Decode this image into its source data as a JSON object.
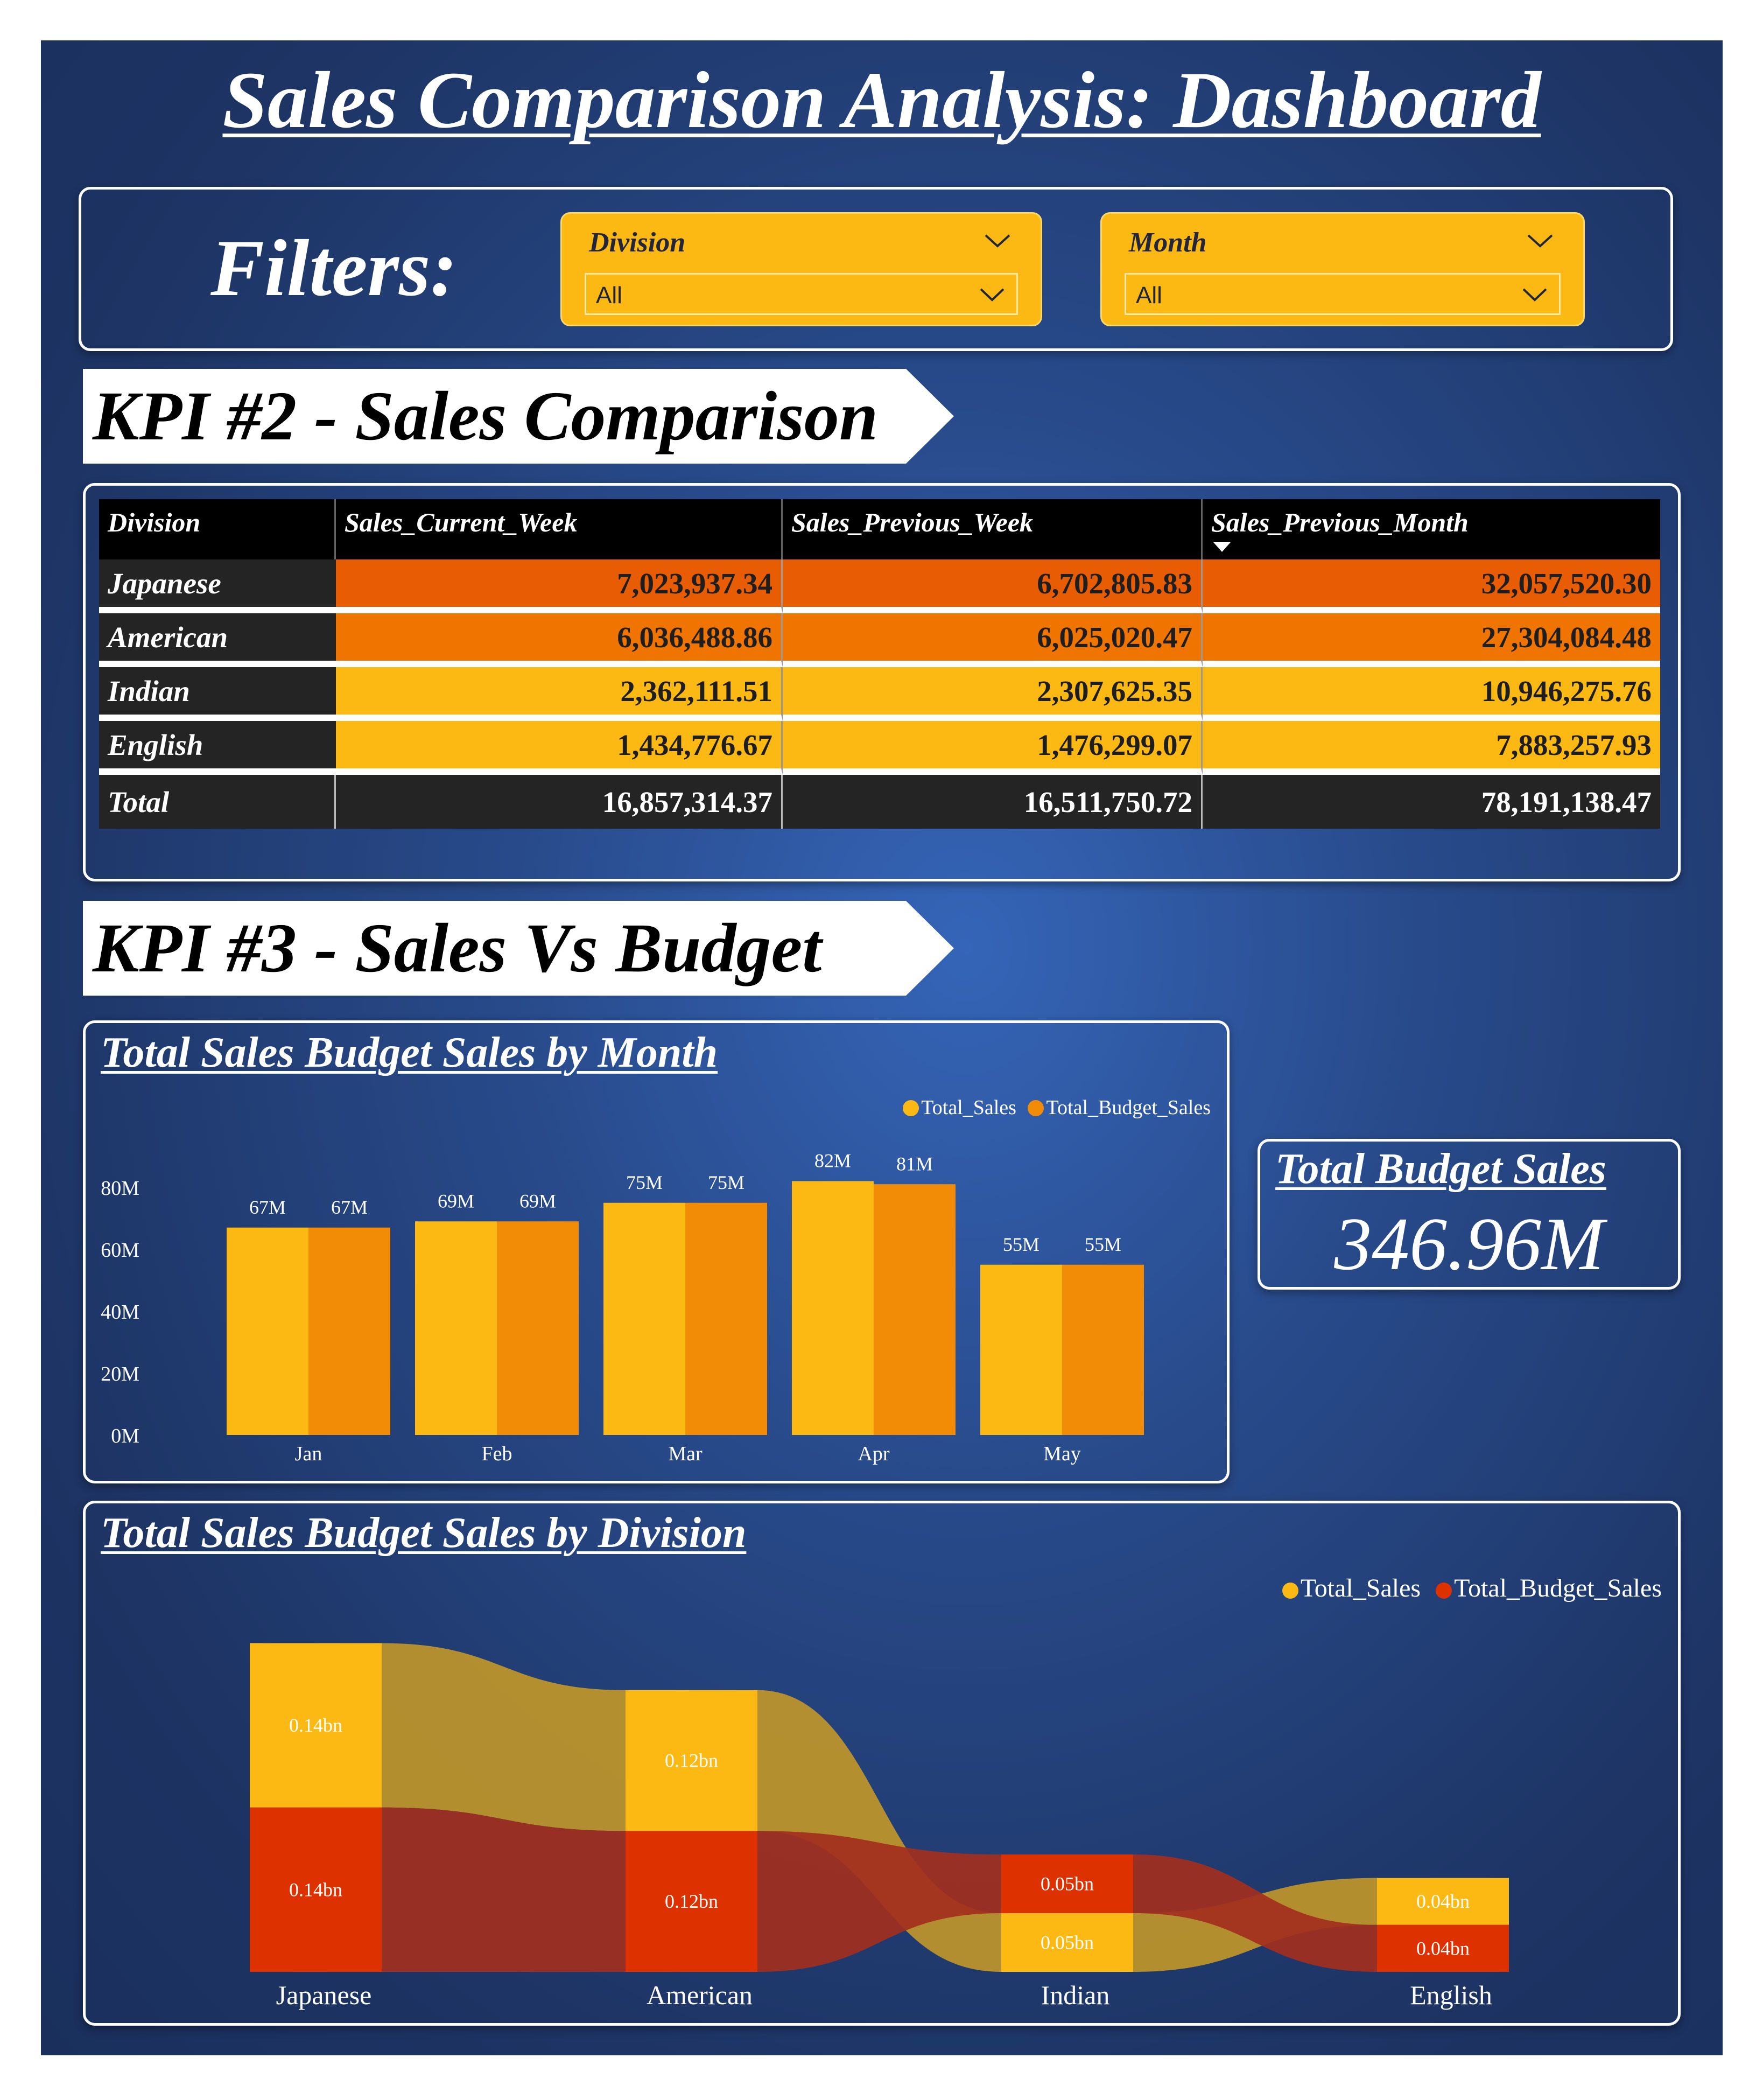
{
  "page": {
    "title": "Sales Comparison Analysis: Dashboard"
  },
  "filters": {
    "label": "Filters:",
    "division": {
      "label": "Division",
      "value": "All"
    },
    "month": {
      "label": "Month",
      "value": "All"
    }
  },
  "kpi2": {
    "banner": "KPI #2 - Sales Comparison",
    "columns": [
      "Division",
      "Sales_Current_Week",
      "Sales_Previous_Week",
      "Sales_Previous_Month"
    ],
    "rows": [
      {
        "division": "Japanese",
        "current_week": "7,023,937.34",
        "previous_week": "6,702,805.83",
        "previous_month": "32,057,520.30",
        "color": "#e85d04"
      },
      {
        "division": "American",
        "current_week": "6,036,488.86",
        "previous_week": "6,025,020.47",
        "previous_month": "27,304,084.48",
        "color": "#f07400"
      },
      {
        "division": "Indian",
        "current_week": "2,362,111.51",
        "previous_week": "2,307,625.35",
        "previous_month": "10,946,275.76",
        "color": "#fcb813"
      },
      {
        "division": "English",
        "current_week": "1,434,776.67",
        "previous_week": "1,476,299.07",
        "previous_month": "7,883,257.93",
        "color": "#fcb813"
      }
    ],
    "total": {
      "label": "Total",
      "current_week": "16,857,314.37",
      "previous_week": "16,511,750.72",
      "previous_month": "78,191,138.47"
    }
  },
  "kpi3": {
    "banner": "KPI #3 - Sales Vs Budget",
    "card": {
      "title": "Total Budget Sales",
      "value": "346.96M"
    }
  },
  "colors": {
    "total_sales": "#fcb813",
    "budget_month": "#f28c06",
    "budget_division": "#dd3100",
    "background": "#284a8a"
  },
  "chart_data": [
    {
      "type": "bar",
      "title": "Total Sales Budget Sales by Month",
      "categories": [
        "Jan",
        "Feb",
        "Mar",
        "Apr",
        "May"
      ],
      "series": [
        {
          "name": "Total_Sales",
          "values": [
            67,
            69,
            75,
            82,
            55
          ],
          "labels": [
            "67M",
            "69M",
            "75M",
            "82M",
            "55M"
          ]
        },
        {
          "name": "Total_Budget_Sales",
          "values": [
            67,
            69,
            75,
            81,
            55
          ],
          "labels": [
            "67M",
            "69M",
            "75M",
            "81M",
            "55M"
          ]
        }
      ],
      "yticks": [
        "0M",
        "20M",
        "40M",
        "60M",
        "80M"
      ],
      "ylim": [
        0,
        80
      ],
      "unit": "M",
      "legend": "top-right"
    },
    {
      "type": "ribbon",
      "title": "Total Sales Budget Sales by Division",
      "categories": [
        "Japanese",
        "American",
        "Indian",
        "English"
      ],
      "series": [
        {
          "name": "Total_Sales",
          "values": [
            0.14,
            0.12,
            0.05,
            0.04
          ],
          "labels": [
            "0.14bn",
            "0.12bn",
            "0.05bn",
            "0.04bn"
          ]
        },
        {
          "name": "Total_Budget_Sales",
          "values": [
            0.14,
            0.12,
            0.05,
            0.04
          ],
          "labels": [
            "0.14bn",
            "0.12bn",
            "0.05bn",
            "0.04bn"
          ]
        }
      ],
      "legend": "top-right"
    }
  ]
}
